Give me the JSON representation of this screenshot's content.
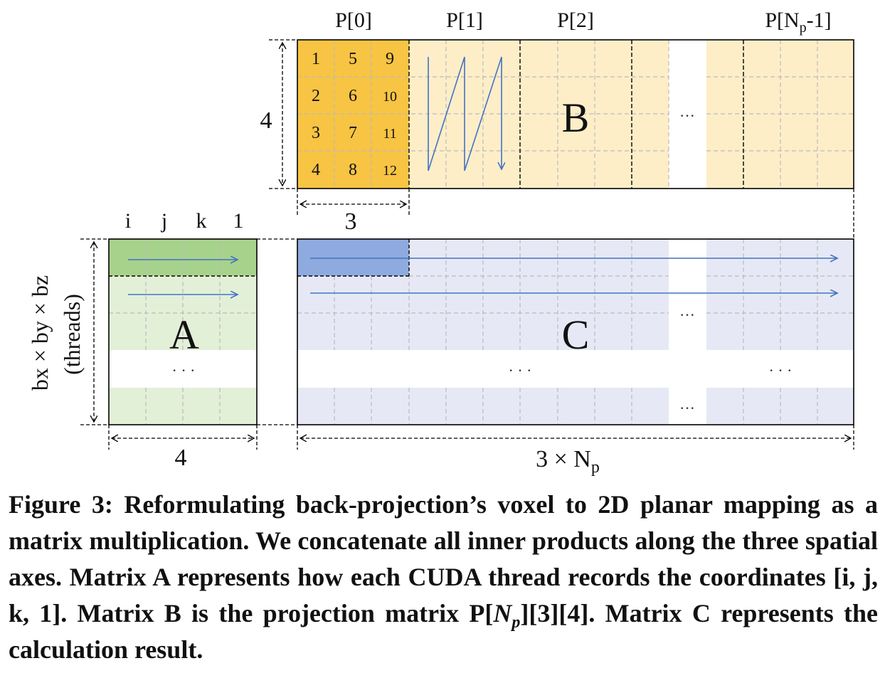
{
  "matrix_b": {
    "label": "B",
    "blocks": [
      "P[0]",
      "P[1]",
      "P[2]",
      "P[N",
      "p",
      "-1]"
    ],
    "p0_cells": [
      "1",
      "2",
      "3",
      "4",
      "5",
      "6",
      "7",
      "8",
      "9",
      "10",
      "11",
      "12"
    ],
    "height_label": "4",
    "block_width_label": "3",
    "ellipsis": "···"
  },
  "matrix_a": {
    "label": "A",
    "columns": [
      "i",
      "j",
      "k",
      "1"
    ],
    "width_label": "4",
    "rows_label_line1": "bx × by × bz",
    "rows_label_line2": "(threads)",
    "ellipsis": "· · ·"
  },
  "matrix_c": {
    "label": "C",
    "width_label_main": "3 × N",
    "width_label_sub": "p",
    "ellipsis_mid": "· · ·",
    "ellipsis_right": "· · ·",
    "ellipsis_col_top": "···",
    "ellipsis_col_bottom": "···"
  },
  "caption": {
    "part1": "Figure 3: Reformulating back-projection’s voxel to 2D planar mapping as a matrix multiplication. We concatenate all inner products along the three spatial axes. Matrix A represents how each CUDA thread records the coordinates [i, j, k, 1]. Matrix B is the projection matrix P[",
    "np_main": "N",
    "np_sub": "p",
    "part2": "][3][4]. Matrix C represents the calculation result."
  },
  "colors": {
    "b_p0": "#f7c443",
    "b_rest": "#fdeec8",
    "a_first_row": "#a7d28c",
    "a_rest": "#e3f0d8",
    "c_first_cell": "#8eaadf",
    "c_rest": "#e6e9f5",
    "arrow": "#4472c4",
    "grid": "#bbbbbb"
  }
}
